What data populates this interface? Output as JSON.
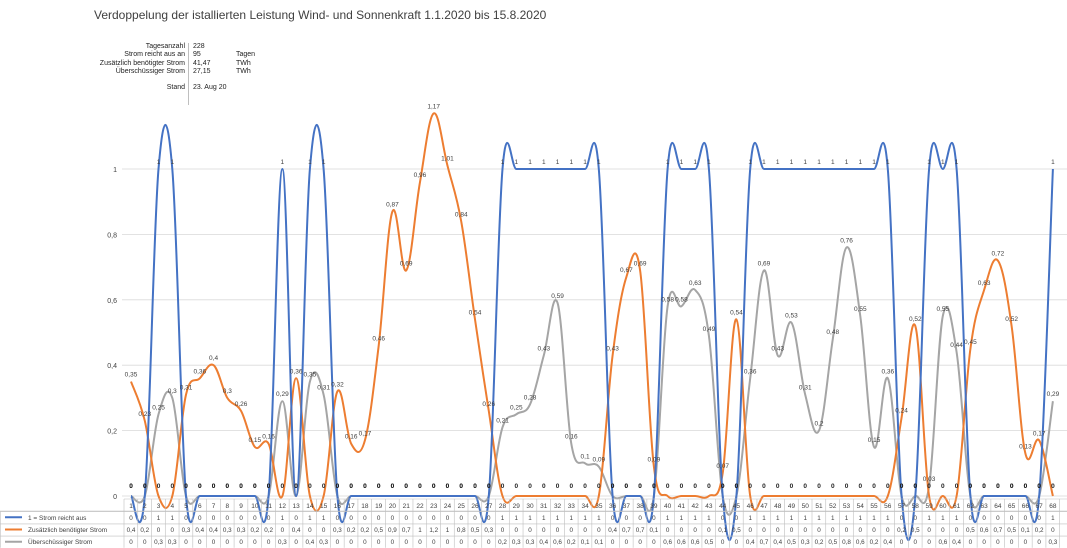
{
  "chart_data": {
    "type": "line",
    "title": "Verdoppelung der istallierten Leistung Wind- und Sonnenkraft 1.1.2020 bis 15.8.2020",
    "ylim": [
      0,
      1.2
    ],
    "y_ticks": [
      "0",
      "0,2",
      "0,4",
      "0,6",
      "0,8",
      "1"
    ],
    "categories": [
      "1",
      "2",
      "3",
      "4",
      "5",
      "6",
      "7",
      "8",
      "9",
      "10",
      "11",
      "12",
      "13",
      "14",
      "15",
      "16",
      "17",
      "18",
      "19",
      "20",
      "21",
      "22",
      "23",
      "24",
      "25",
      "26",
      "27",
      "28",
      "29",
      "30",
      "31",
      "32",
      "33",
      "34",
      "35",
      "36",
      "37",
      "38",
      "39",
      "40",
      "41",
      "42",
      "43",
      "44",
      "45",
      "46",
      "47",
      "48",
      "49",
      "50",
      "51",
      "52",
      "53",
      "54",
      "55",
      "56",
      "57",
      "58",
      "59",
      "60",
      "61",
      "62",
      "63",
      "64",
      "65",
      "66",
      "67",
      "68"
    ],
    "grid": true,
    "legend": "bottom-left (data table)",
    "series": [
      {
        "name": "1 = Strom reicht aus",
        "color": "#4472C4",
        "values": [
          0,
          0,
          1,
          1,
          0,
          0,
          0,
          0,
          0,
          0,
          0,
          1,
          0,
          1,
          1,
          0,
          0,
          0,
          0,
          0,
          0,
          0,
          0,
          0,
          0,
          0,
          0,
          1,
          1,
          1,
          1,
          1,
          1,
          1,
          1,
          0,
          0,
          0,
          0,
          1,
          1,
          1,
          1,
          0,
          0,
          1,
          1,
          1,
          1,
          1,
          1,
          1,
          1,
          1,
          1,
          1,
          0,
          0,
          1,
          1,
          1,
          0,
          0,
          0,
          0,
          0,
          0,
          1
        ],
        "table_text": [
          "0",
          "0",
          "1",
          "1",
          "0",
          "0",
          "0",
          "0",
          "0",
          "0",
          "0",
          "1",
          "0",
          "1",
          "1",
          "0",
          "0",
          "0",
          "0",
          "0",
          "0",
          "0",
          "0",
          "0",
          "0",
          "0",
          "0",
          "1",
          "1",
          "1",
          "1",
          "1",
          "1",
          "1",
          "1",
          "0",
          "0",
          "0",
          "0",
          "1",
          "1",
          "1",
          "1",
          "0",
          "0",
          "1",
          "1",
          "1",
          "1",
          "1",
          "1",
          "1",
          "1",
          "1",
          "1",
          "1",
          "0",
          "0",
          "1",
          "1",
          "1",
          "0",
          "0",
          "0",
          "0",
          "0",
          "0",
          "1"
        ],
        "point_labels": [
          "0",
          "0",
          "1",
          "1",
          "0",
          "0",
          "0",
          "0",
          "0",
          "0",
          "0",
          "1",
          "0",
          "1",
          "1",
          "0",
          "0",
          "0",
          "0",
          "0",
          "0",
          "0",
          "0",
          "0",
          "0",
          "0",
          "0",
          "1",
          "1",
          "1",
          "1",
          "1",
          "1",
          "1",
          "1",
          "0",
          "0",
          "0",
          "0",
          "1",
          "1",
          "1",
          "1",
          "0",
          "0",
          "1",
          "1",
          "1",
          "1",
          "1",
          "1",
          "1",
          "1",
          "1",
          "1",
          "1",
          "0",
          "0",
          "1",
          "1",
          "1",
          "0",
          "0",
          "0",
          "0",
          "0",
          "0",
          "1"
        ]
      },
      {
        "name": "Zusätzlich benötigter Strom",
        "color": "#ED7D31",
        "values": [
          0.35,
          0.23,
          0,
          0,
          0.31,
          0.36,
          0.4,
          0.3,
          0.26,
          0.15,
          0.16,
          0,
          0.36,
          0,
          0,
          0.32,
          0.16,
          0.17,
          0.46,
          0.87,
          0.69,
          0.96,
          1.17,
          1.01,
          0.84,
          0.54,
          0.26,
          0,
          0,
          0,
          0,
          0,
          0,
          0,
          0,
          0.43,
          0.67,
          0.69,
          0.09,
          0,
          0,
          0,
          0,
          0.07,
          0.54,
          0,
          0,
          0,
          0,
          0,
          0,
          0,
          0,
          0,
          0,
          0,
          0.24,
          0.52,
          0,
          0,
          0,
          0.45,
          0.63,
          0.72,
          0.52,
          0.13,
          0.17,
          0
        ],
        "table_text": [
          "0,4",
          "0,2",
          "0",
          "0",
          "0,3",
          "0,4",
          "0,4",
          "0,3",
          "0,3",
          "0,2",
          "0,2",
          "0",
          "0,4",
          "0",
          "0",
          "0,3",
          "0,2",
          "0,2",
          "0,5",
          "0,9",
          "0,7",
          "1",
          "1,2",
          "1",
          "0,8",
          "0,5",
          "0,3",
          "0",
          "0",
          "0",
          "0",
          "0",
          "0",
          "0",
          "0",
          "0,4",
          "0,7",
          "0,7",
          "0,1",
          "0",
          "0",
          "0",
          "0",
          "0,1",
          "0,5",
          "0",
          "0",
          "0",
          "0",
          "0",
          "0",
          "0",
          "0",
          "0",
          "0",
          "0",
          "0,2",
          "0,5",
          "0",
          "0",
          "0",
          "0,5",
          "0,6",
          "0,7",
          "0,5",
          "0,1",
          "0,2",
          "0"
        ],
        "point_labels": [
          "0,35",
          "0,23",
          "0",
          "0",
          "0,31",
          "0,36",
          "0,4",
          "0,3",
          "0,26",
          "0,15",
          "0,16",
          "0",
          "0,36",
          "0",
          "0",
          "0,32",
          "0,16",
          "0,17",
          "0,46",
          "0,87",
          "0,69",
          "0,96",
          "1,17",
          "1,01",
          "0,84",
          "0,54",
          "0,26",
          "0",
          "0",
          "0",
          "0",
          "0",
          "0",
          "0",
          "0",
          "0,43",
          "0,67",
          "0,69",
          "0,09",
          "0",
          "0",
          "0",
          "0",
          "0,07",
          "0,54",
          "0",
          "0",
          "0",
          "0",
          "0",
          "0",
          "0",
          "0",
          "0",
          "0",
          "0",
          "0,24",
          "0,52",
          "0",
          "0",
          "0",
          "0,45",
          "0,63",
          "0,72",
          "0,52",
          "0,13",
          "0,17",
          "0"
        ]
      },
      {
        "name": "Überschüssiger Strom",
        "color": "#A5A5A5",
        "values": [
          0,
          0,
          0.25,
          0.3,
          0,
          0,
          0,
          0,
          0,
          0,
          0,
          0.29,
          0,
          0.35,
          0.31,
          0,
          0,
          0,
          0,
          0,
          0,
          0,
          0,
          0,
          0,
          0,
          0,
          0.21,
          0.25,
          0.28,
          0.43,
          0.59,
          0.16,
          0.1,
          0.09,
          0,
          0,
          0,
          0,
          0.58,
          0.58,
          0.63,
          0.49,
          0,
          0,
          0.36,
          0.69,
          0.43,
          0.53,
          0.31,
          0.2,
          0.48,
          0.76,
          0.55,
          0.15,
          0.36,
          0,
          0,
          0.03,
          0.55,
          0.44,
          0,
          0,
          0,
          0,
          0,
          0,
          0.29
        ],
        "table_text": [
          "0",
          "0",
          "0,3",
          "0,3",
          "0",
          "0",
          "0",
          "0",
          "0",
          "0",
          "0",
          "0,3",
          "0",
          "0,4",
          "0,3",
          "0",
          "0",
          "0",
          "0",
          "0",
          "0",
          "0",
          "0",
          "0",
          "0",
          "0",
          "0",
          "0,2",
          "0,3",
          "0,3",
          "0,4",
          "0,6",
          "0,2",
          "0,1",
          "0,1",
          "0",
          "0",
          "0",
          "0",
          "0,6",
          "0,6",
          "0,6",
          "0,5",
          "0",
          "0",
          "0,4",
          "0,7",
          "0,4",
          "0,5",
          "0,3",
          "0,2",
          "0,5",
          "0,8",
          "0,6",
          "0,2",
          "0,4",
          "0",
          "0",
          "0",
          "0,6",
          "0,4",
          "0",
          "0",
          "0",
          "0",
          "0",
          "0",
          "0,3"
        ],
        "point_labels": [
          "0",
          "0",
          "0,25",
          "0,3",
          "0",
          "0",
          "0",
          "0",
          "0",
          "0",
          "0",
          "0,29",
          "0",
          "0,35",
          "0,31",
          "0",
          "0",
          "0",
          "0",
          "0",
          "0",
          "0",
          "0",
          "0",
          "0",
          "0",
          "0",
          "0,21",
          "0,25",
          "0,28",
          "0,43",
          "0,59",
          "0,16",
          "0,1",
          "0,09",
          "0",
          "0",
          "0",
          "0",
          "0,58",
          "0,58",
          "0,63",
          "0,49",
          "0",
          "0",
          "0,36",
          "0,69",
          "0,43",
          "0,53",
          "0,31",
          "0,2",
          "0,48",
          "0,76",
          "0,55",
          "0,15",
          "0,36",
          "0",
          "0",
          "0,03",
          "0,55",
          "0,44",
          "0",
          "0",
          "0",
          "0",
          "0",
          "0",
          "0,29"
        ]
      }
    ]
  },
  "info_box": {
    "rows": [
      {
        "label": "Tagesanzahl",
        "value": "228",
        "unit": ""
      },
      {
        "label": "Strom reicht aus an",
        "value": "95",
        "unit": "Tagen"
      },
      {
        "label": "Zusätzlich benötigter Strom",
        "value": "41,47",
        "unit": "TWh"
      },
      {
        "label": "Überschüssiger Strom",
        "value": "27,15",
        "unit": "TWh"
      }
    ],
    "stand_label": "Stand",
    "stand_value": "23. Aug 20"
  }
}
